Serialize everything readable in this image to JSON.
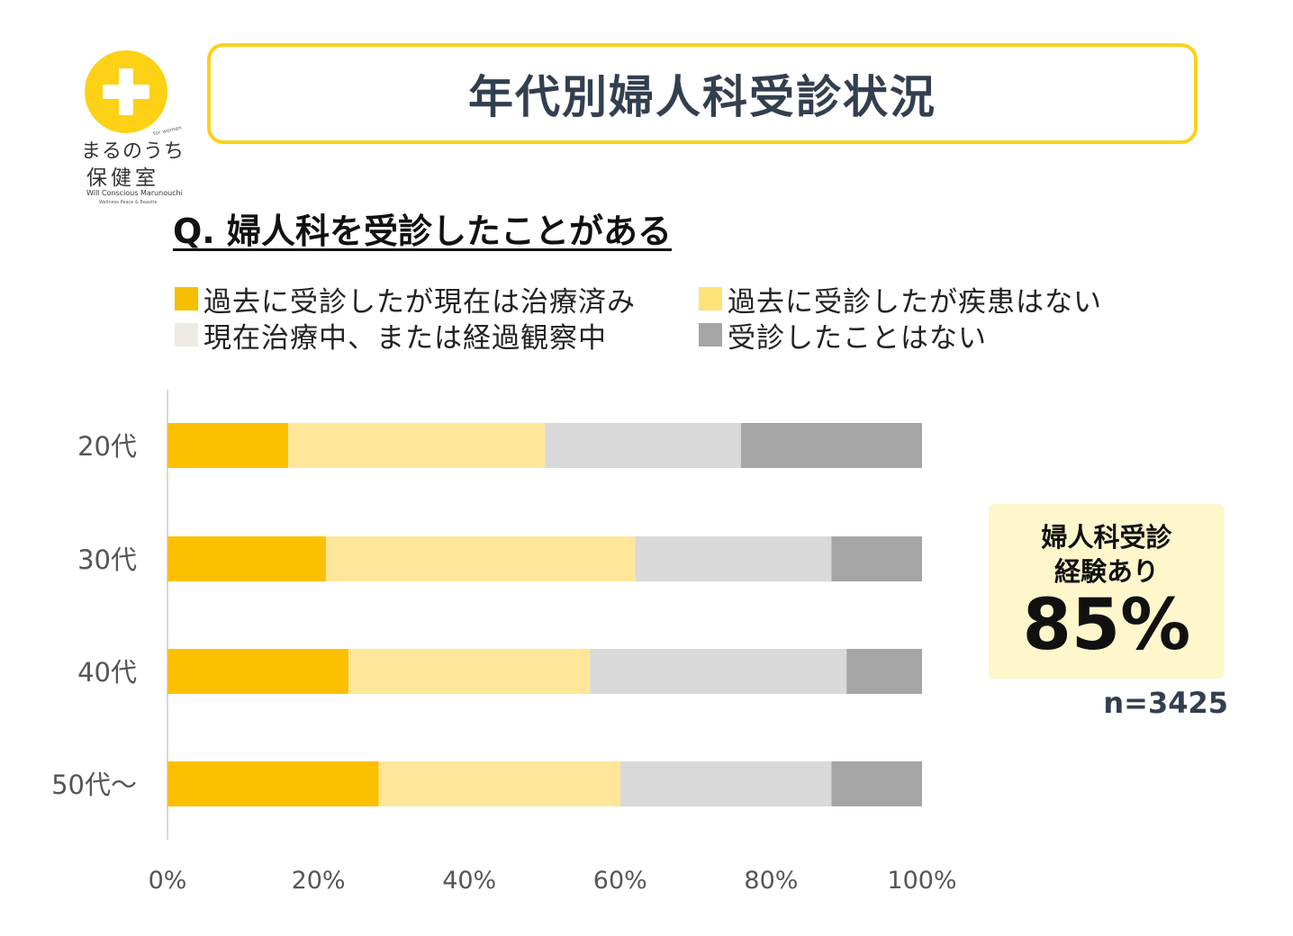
{
  "logo": {
    "line1": "まるのうち",
    "line2": "保健室",
    "sub1": "Will Conscious Marunouchi",
    "sub2": "Wellness Peace & Beautie",
    "tag": "for women"
  },
  "title": "年代別婦人科受診状況",
  "question": "Q. 婦人科を受診したことがある",
  "legend": [
    {
      "label": "過去に受診したが現在は治療済み",
      "color": "#f5be00"
    },
    {
      "label": "過去に受診したが疾患はない",
      "color": "#fde27a"
    },
    {
      "label": "現在治療中、または経過観察中",
      "color": "#eceae3"
    },
    {
      "label": "受診したことはない",
      "color": "#a5a5a5"
    }
  ],
  "chart_data": {
    "type": "bar",
    "orientation": "horizontal",
    "stacked": true,
    "categories": [
      "20代",
      "30代",
      "40代",
      "50代～"
    ],
    "series": [
      {
        "name": "過去に受診したが現在は治療済み",
        "color": "#fdc000",
        "values": [
          16,
          21,
          24,
          28
        ]
      },
      {
        "name": "過去に受診したが疾患はない",
        "color": "#ffe699",
        "values": [
          34,
          41,
          32,
          32
        ]
      },
      {
        "name": "現在治療中、または経過観察中",
        "color": "#d9d9d9",
        "values": [
          26,
          26,
          34,
          28
        ]
      },
      {
        "name": "受診したことはない",
        "color": "#a5a5a5",
        "values": [
          24,
          12,
          10,
          12
        ]
      }
    ],
    "xlim": [
      0,
      100
    ],
    "x_ticks": [
      "0%",
      "20%",
      "40%",
      "60%",
      "80%",
      "100%"
    ],
    "grid": false,
    "legend_position": "top"
  },
  "callout": {
    "line1": "婦人科受診",
    "line2": "経験あり",
    "value": "85%"
  },
  "sample_size": "n=3425"
}
